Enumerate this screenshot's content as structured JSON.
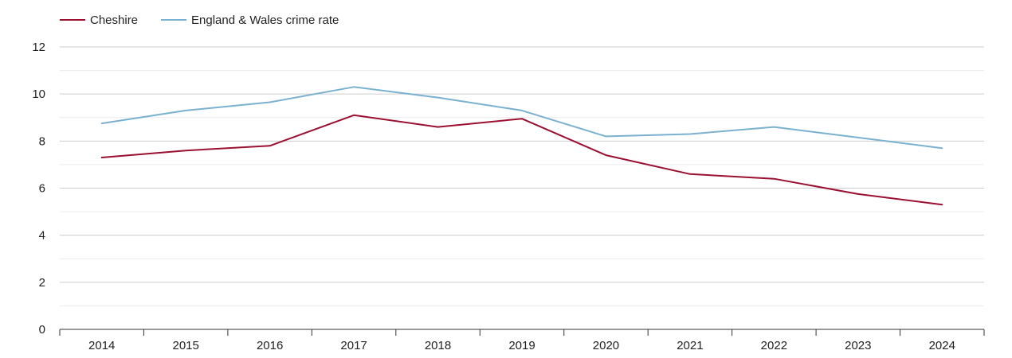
{
  "chart_data": {
    "type": "line",
    "title": "",
    "xlabel": "",
    "ylabel": "",
    "categories": [
      "2014",
      "2015",
      "2016",
      "2017",
      "2018",
      "2019",
      "2020",
      "2021",
      "2022",
      "2023",
      "2024"
    ],
    "series": [
      {
        "name": "Cheshire",
        "color": "#9b0f31",
        "values": [
          7.3,
          7.6,
          7.8,
          9.1,
          8.6,
          8.95,
          7.4,
          6.6,
          6.4,
          5.75,
          5.3
        ]
      },
      {
        "name": "England & Wales crime rate",
        "color": "#7ab0d0",
        "values": [
          8.75,
          9.3,
          9.65,
          10.3,
          9.85,
          9.3,
          8.2,
          8.3,
          8.6,
          8.15,
          7.7
        ]
      }
    ],
    "ylim": [
      0,
      12
    ],
    "yticks": [
      "0",
      "2",
      "4",
      "6",
      "8",
      "10",
      "12"
    ],
    "grid": true,
    "legend_position": "top-left"
  }
}
